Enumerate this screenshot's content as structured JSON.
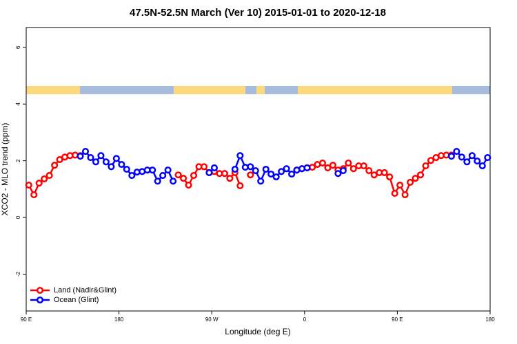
{
  "chart_data": {
    "type": "line",
    "title": "47.5N-52.5N March (Ver 10)   2015-01-01 to 2020-12-18",
    "xlabel": "Longitude (deg E)",
    "ylabel": "XCO2 - MLO trend (ppm)",
    "x": [
      92.5,
      97.5,
      102.5,
      107.5,
      112.5,
      117.5,
      122.5,
      127.5,
      132.5,
      137.5,
      142.5,
      147.5,
      152.5,
      157.5,
      162.5,
      167.5,
      172.5,
      177.5,
      182.5,
      187.5,
      192.5,
      197.5,
      202.5,
      207.5,
      212.5,
      217.5,
      222.5,
      227.5,
      232.5,
      237.5,
      242.5,
      247.5,
      252.5,
      257.5,
      262.5,
      267.5,
      272.5,
      277.5,
      282.5,
      287.5,
      292.5,
      297.5,
      302.5,
      307.5,
      312.5,
      317.5,
      322.5,
      327.5,
      332.5,
      337.5,
      342.5,
      347.5,
      352.5,
      357.5,
      362.5,
      367.5,
      372.5,
      377.5,
      382.5,
      387.5,
      392.5,
      397.5,
      402.5,
      407.5,
      412.5,
      417.5,
      422.5,
      427.5,
      432.5,
      437.5,
      442.5,
      447.5,
      452.5,
      457.5,
      462.5,
      467.5,
      472.5,
      477.5,
      482.5,
      487.5,
      492.5,
      497.5,
      502.5,
      507.5,
      512.5,
      517.5,
      522.5,
      527.5,
      532.5,
      537.5
    ],
    "series": [
      {
        "name": "Land (Nadir&Glint)",
        "color": "#ff0000",
        "values": [
          1.14,
          0.8,
          1.21,
          1.36,
          1.48,
          1.84,
          2.04,
          2.13,
          2.18,
          2.2,
          2.18,
          null,
          null,
          null,
          null,
          null,
          null,
          null,
          null,
          null,
          null,
          null,
          null,
          null,
          null,
          null,
          null,
          null,
          null,
          1.5,
          1.38,
          1.14,
          1.48,
          1.79,
          1.79,
          1.58,
          1.62,
          1.55,
          1.55,
          1.38,
          1.58,
          1.12,
          null,
          1.5,
          null,
          null,
          null,
          null,
          null,
          null,
          null,
          null,
          1.67,
          1.72,
          1.75,
          1.77,
          1.87,
          1.92,
          1.75,
          1.84,
          1.67,
          1.72,
          1.92,
          1.72,
          1.82,
          1.82,
          1.65,
          1.5,
          1.58,
          1.58,
          1.43,
          0.85,
          1.14,
          0.8,
          1.24,
          1.38,
          1.5,
          1.82,
          2.01,
          2.11,
          2.18,
          2.2,
          2.2,
          null,
          null,
          null,
          null,
          null,
          null,
          null
        ]
      },
      {
        "name": "Ocean (Glint)",
        "color": "#0000ff",
        "values": [
          null,
          null,
          null,
          null,
          null,
          null,
          null,
          null,
          null,
          null,
          2.16,
          2.33,
          2.11,
          1.96,
          2.18,
          1.96,
          1.79,
          2.08,
          1.87,
          1.7,
          1.48,
          1.6,
          1.62,
          1.67,
          1.67,
          1.28,
          1.48,
          1.67,
          1.28,
          null,
          null,
          null,
          null,
          null,
          null,
          1.58,
          1.75,
          null,
          null,
          null,
          1.7,
          2.18,
          1.77,
          1.79,
          1.65,
          1.28,
          1.7,
          1.53,
          1.43,
          1.62,
          1.72,
          1.53,
          1.67,
          1.72,
          1.75,
          null,
          null,
          null,
          null,
          null,
          1.55,
          1.65,
          null,
          null,
          null,
          null,
          null,
          null,
          null,
          null,
          null,
          null,
          null,
          null,
          null,
          null,
          null,
          null,
          null,
          null,
          null,
          null,
          2.16,
          2.33,
          2.13,
          1.96,
          2.18,
          1.99,
          1.82,
          2.11
        ]
      }
    ],
    "xlim": [
      90,
      540
    ],
    "xticks": [
      {
        "value": 90,
        "label": "90 E"
      },
      180,
      {
        "value": 270,
        "label": "90 W"
      },
      {
        "value": 360,
        "label": "0"
      },
      {
        "value": 450,
        "label": "90 E"
      },
      {
        "value": 540,
        "label": "180"
      }
    ],
    "ylim": [
      -3.3,
      6.7
    ],
    "yticks": [
      -2,
      0,
      2,
      4,
      6
    ],
    "legend": "bottom-left"
  }
}
